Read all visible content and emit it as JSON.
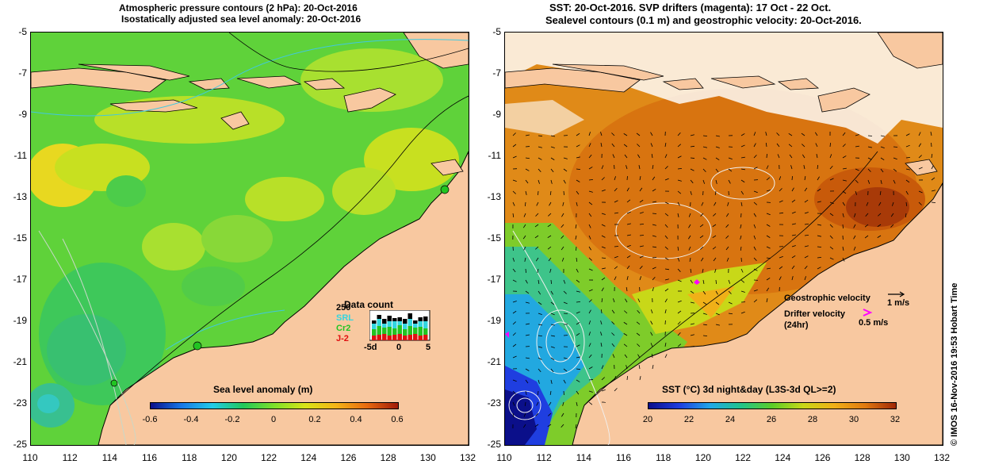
{
  "left_panel": {
    "title_line1": "Atmospheric pressure contours (2 hPa): 20-Oct-2016",
    "title_line2": "Isostatically adjusted sea level anomaly: 20-Oct-2016",
    "colorbar": {
      "title": "Sea level anomaly (m)",
      "ticks": [
        "-0.6",
        "-0.4",
        "-0.2",
        "0",
        "0.2",
        "0.4",
        "0.6"
      ]
    },
    "data_count": {
      "title": "Data count",
      "top_label": "250",
      "missions": [
        {
          "name": "SRL",
          "color": "#33d6e0"
        },
        {
          "name": "Cr2",
          "color": "#22c422"
        },
        {
          "name": "J-2",
          "color": "#e01010"
        }
      ],
      "xticks": [
        "-5d",
        "0",
        "5"
      ]
    }
  },
  "right_panel": {
    "title_line1": "SST: 20-Oct-2016. SVP drifters (magenta): 17 Oct - 22 Oct.",
    "title_line2": "Sealevel contours (0.1 m) and geostrophic velocity: 20-Oct-2016.",
    "colorbar": {
      "title": "SST (°C) 3d night&day (L3S-3d QL>=2)",
      "ticks": [
        "20",
        "22",
        "24",
        "26",
        "28",
        "30",
        "32"
      ]
    },
    "legend": {
      "geostrophic": "Geostrophic velocity",
      "geostrophic_scale": "1 m/s",
      "drifter_line1": "Drifter velocity",
      "drifter_line2": "(24hr)",
      "drifter_scale": "0.5 m/s"
    },
    "stamp": "© IMOS 16-Nov-2016 19:53 Hobart Time"
  },
  "axes": {
    "lat_ticks": [
      "-5",
      "-7",
      "-9",
      "-11",
      "-13",
      "-15",
      "-17",
      "-19",
      "-21",
      "-23",
      "-25"
    ],
    "lon_ticks": [
      "110",
      "112",
      "114",
      "116",
      "118",
      "120",
      "122",
      "124",
      "126",
      "128",
      "130",
      "132"
    ]
  },
  "colors": {
    "land": "#f8c8a0",
    "sla_gradient": [
      "#0b0f8a",
      "#1878e8",
      "#22cce8",
      "#22c85a",
      "#7ee02a",
      "#d8e418",
      "#f4b418",
      "#e86a10",
      "#a01a08"
    ],
    "sst_gradient": [
      "#0b0f8a",
      "#1f3ee0",
      "#22a8e8",
      "#22c48a",
      "#5ccc28",
      "#c8d818",
      "#f0b018",
      "#e07a10",
      "#a02808"
    ],
    "drifter": "#ff00ff"
  }
}
